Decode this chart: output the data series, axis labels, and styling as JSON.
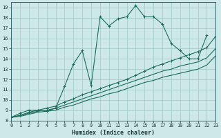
{
  "xlabel": "Humidex (Indice chaleur)",
  "bg_color": "#cce8e8",
  "grid_color": "#a8cccc",
  "line_color": "#1a6b5a",
  "xlim": [
    0,
    23
  ],
  "ylim": [
    8,
    19.5
  ],
  "xticks": [
    0,
    1,
    2,
    3,
    4,
    5,
    6,
    7,
    8,
    9,
    10,
    11,
    12,
    13,
    14,
    15,
    16,
    17,
    18,
    19,
    20,
    21,
    22,
    23
  ],
  "yticks": [
    8,
    9,
    10,
    11,
    12,
    13,
    14,
    15,
    16,
    17,
    18,
    19
  ],
  "series1_x": [
    0,
    1,
    2,
    3,
    4,
    5,
    6,
    7,
    8,
    9,
    10,
    11,
    12,
    13,
    14,
    15,
    16,
    17,
    18,
    19,
    20,
    21,
    22
  ],
  "series1_y": [
    8.3,
    8.7,
    9.0,
    9.0,
    8.9,
    9.2,
    11.3,
    13.5,
    14.8,
    11.4,
    18.1,
    17.2,
    17.9,
    18.1,
    19.2,
    18.1,
    18.1,
    17.4,
    15.5,
    14.8,
    14.0,
    14.0,
    16.3
  ],
  "series2_x": [
    0,
    1,
    2,
    3,
    4,
    5,
    6,
    7,
    8,
    9,
    10,
    11,
    12,
    13,
    14,
    15,
    16,
    17,
    18,
    19,
    20,
    21,
    22,
    23
  ],
  "series2_y": [
    8.3,
    8.5,
    8.8,
    9.0,
    9.2,
    9.4,
    9.8,
    10.1,
    10.5,
    10.8,
    11.1,
    11.4,
    11.7,
    12.0,
    12.4,
    12.8,
    13.2,
    13.5,
    13.8,
    14.1,
    14.4,
    14.7,
    15.1,
    16.2
  ],
  "series3_x": [
    0,
    1,
    2,
    3,
    4,
    5,
    6,
    7,
    8,
    9,
    10,
    11,
    12,
    13,
    14,
    15,
    16,
    17,
    18,
    19,
    20,
    21,
    22,
    23
  ],
  "series3_y": [
    8.3,
    8.5,
    8.7,
    8.9,
    9.0,
    9.2,
    9.5,
    9.8,
    10.1,
    10.4,
    10.7,
    11.0,
    11.3,
    11.6,
    11.9,
    12.2,
    12.5,
    12.8,
    13.0,
    13.3,
    13.5,
    13.7,
    14.1,
    15.0
  ],
  "series4_x": [
    0,
    1,
    2,
    3,
    4,
    5,
    6,
    7,
    8,
    9,
    10,
    11,
    12,
    13,
    14,
    15,
    16,
    17,
    18,
    19,
    20,
    21,
    22,
    23
  ],
  "series4_y": [
    8.3,
    8.4,
    8.6,
    8.8,
    8.9,
    9.0,
    9.3,
    9.5,
    9.8,
    10.1,
    10.3,
    10.6,
    10.8,
    11.1,
    11.4,
    11.7,
    11.9,
    12.2,
    12.4,
    12.6,
    12.8,
    13.0,
    13.4,
    14.3
  ]
}
